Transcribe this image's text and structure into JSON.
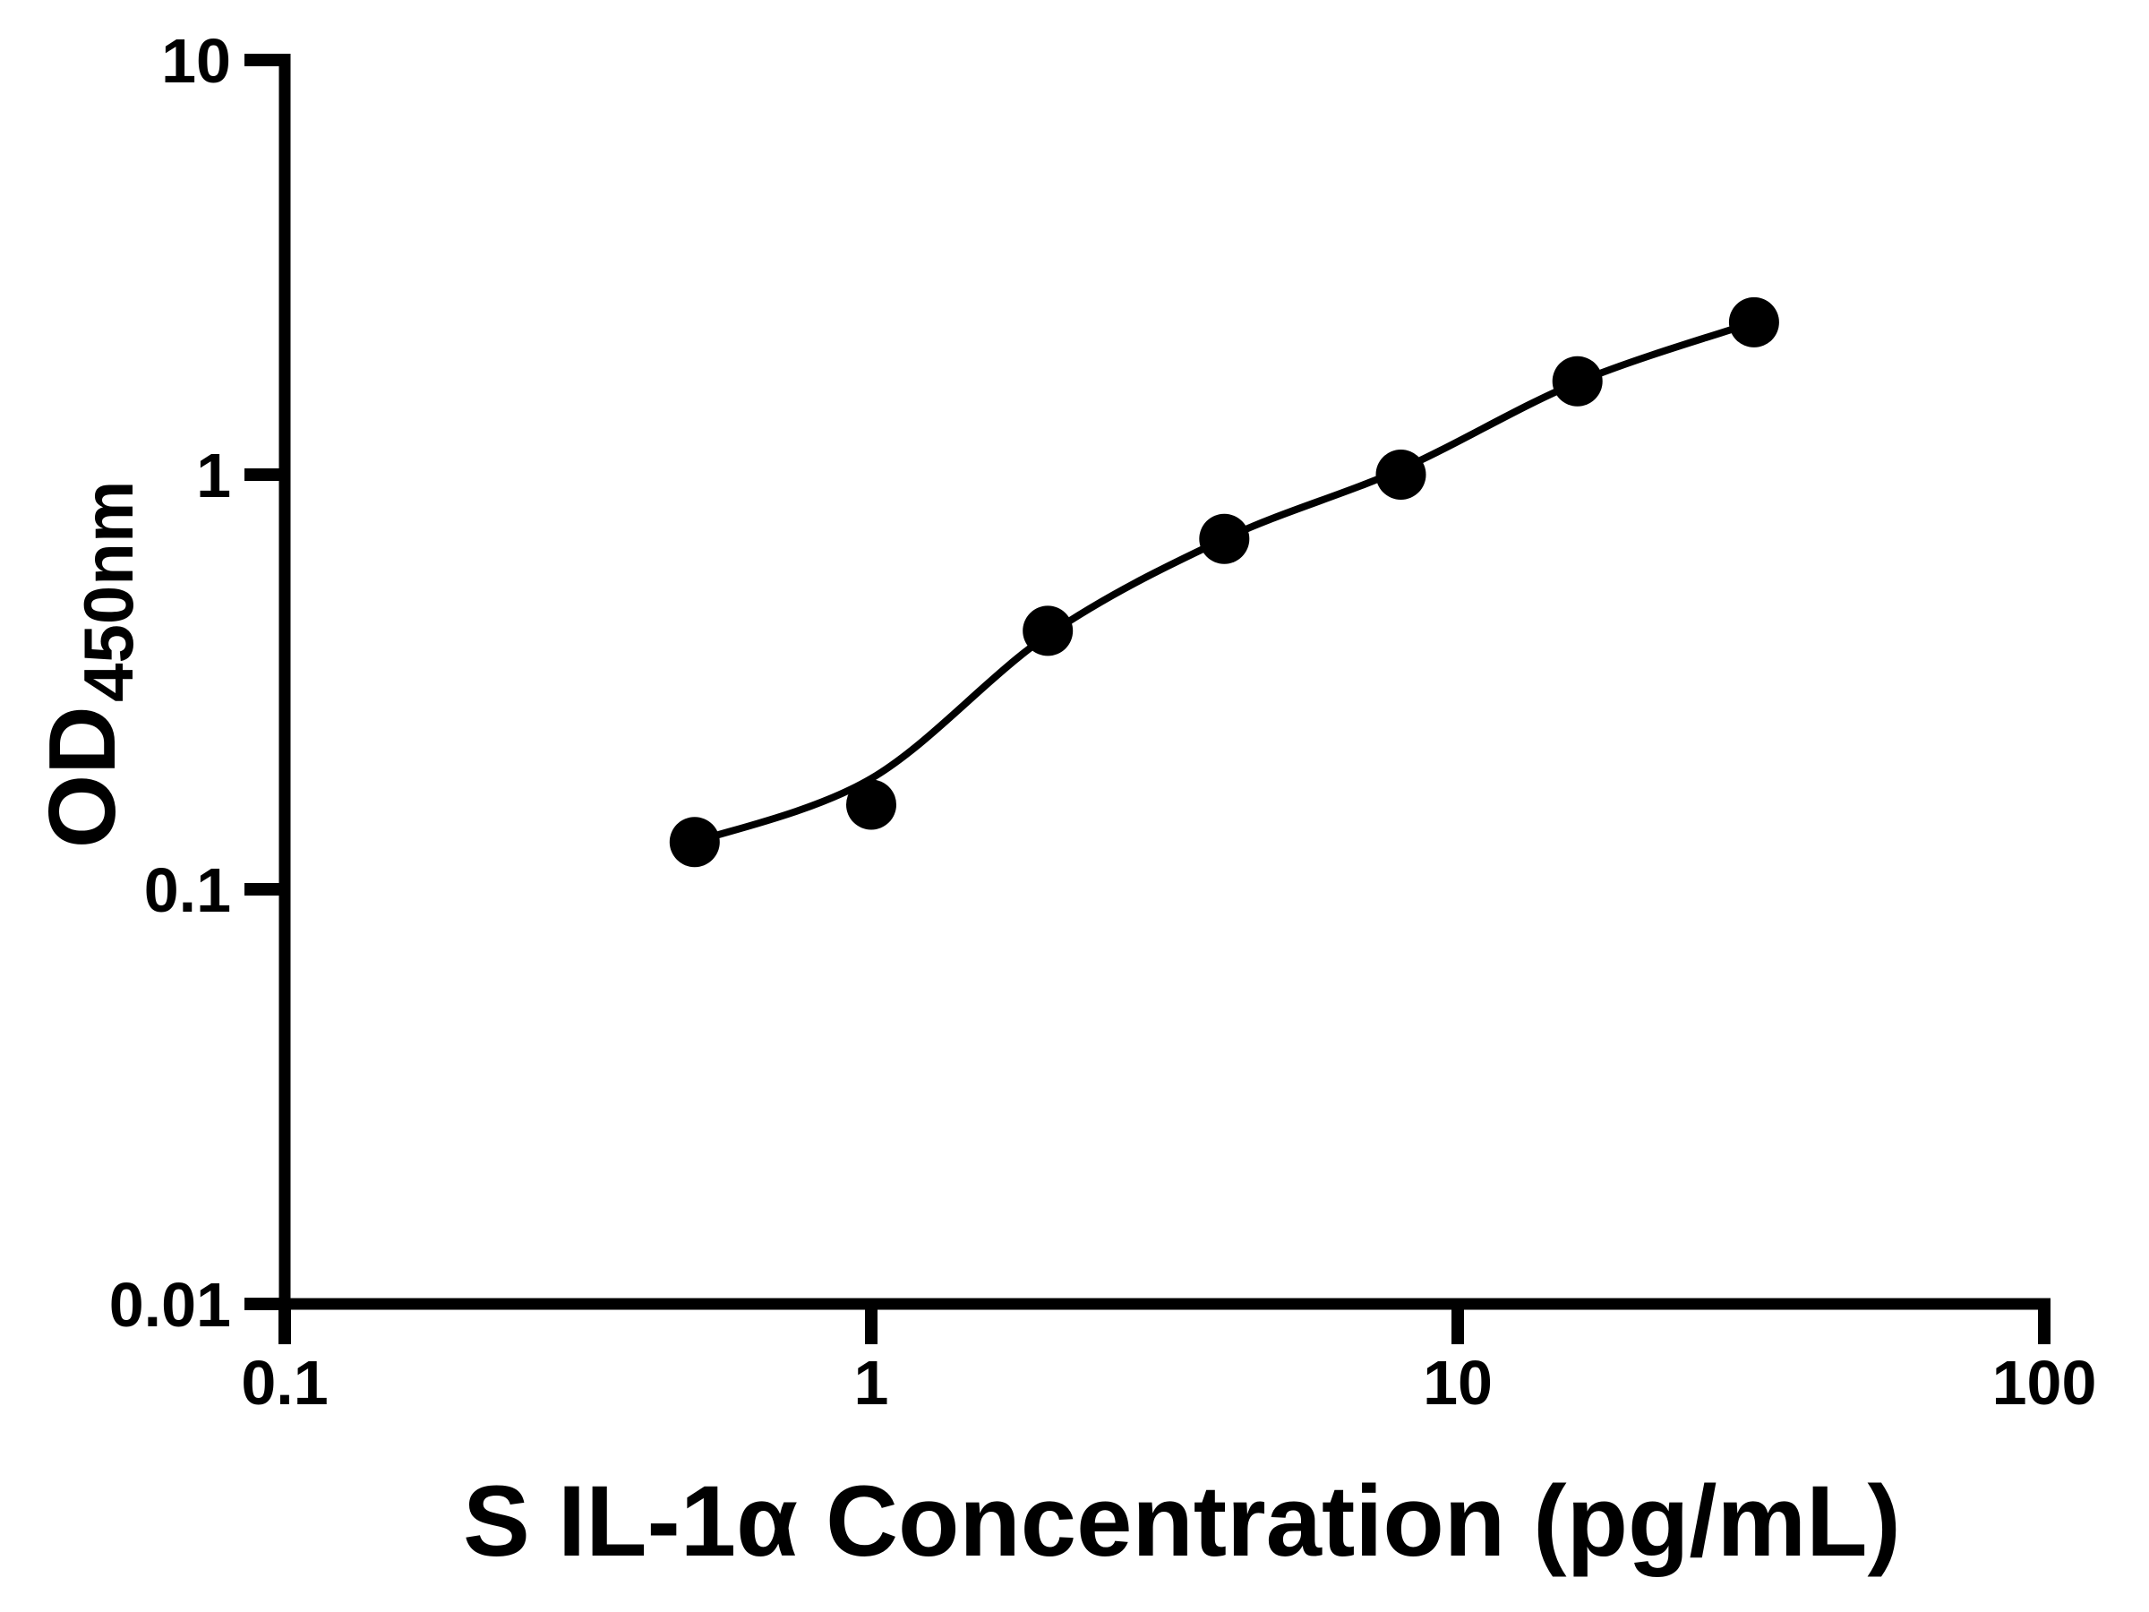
{
  "chart_data": {
    "type": "scatter",
    "title": "",
    "xlabel": "S IL-1α Concentration (pg/mL)",
    "ylabel": "OD450nm",
    "ylabel_main": "OD",
    "ylabel_sub": "450nm",
    "x_scale": "log",
    "y_scale": "log",
    "xlim": [
      0.1,
      100
    ],
    "ylim": [
      0.01,
      10
    ],
    "x_ticks": [
      "0.1",
      "1",
      "10",
      "100"
    ],
    "y_ticks": [
      "0.01",
      "0.1",
      "1",
      "10"
    ],
    "grid": false,
    "legend": null,
    "background_color": "#ffffff",
    "axis_color": "#000000",
    "series": [
      {
        "name": "standard-points",
        "marker": "circle",
        "color": "#000000",
        "points": [
          {
            "x": 0.5,
            "y": 0.13
          },
          {
            "x": 1,
            "y": 0.16
          },
          {
            "x": 2,
            "y": 0.42
          },
          {
            "x": 4,
            "y": 0.7
          },
          {
            "x": 8,
            "y": 1.0
          },
          {
            "x": 16,
            "y": 1.68
          },
          {
            "x": 32,
            "y": 2.33
          }
        ]
      }
    ],
    "fit_curve": {
      "name": "fit-curve",
      "color": "#000000",
      "points": [
        {
          "x": 0.5,
          "y": 0.13
        },
        {
          "x": 1,
          "y": 0.185
        },
        {
          "x": 2,
          "y": 0.41
        },
        {
          "x": 4,
          "y": 0.7
        },
        {
          "x": 8,
          "y": 1.03
        },
        {
          "x": 16,
          "y": 1.67
        },
        {
          "x": 32,
          "y": 2.33
        }
      ]
    }
  }
}
